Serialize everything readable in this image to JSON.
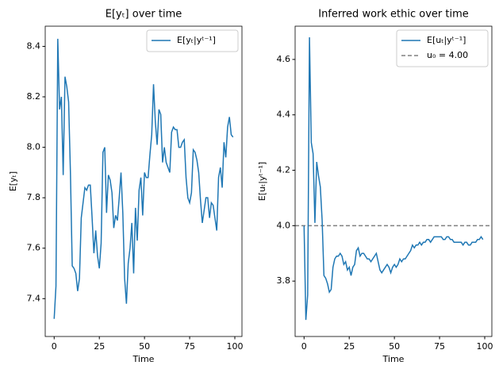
{
  "chart_data": [
    {
      "type": "line",
      "title": "E[yₜ] over time",
      "xlabel": "Time",
      "ylabel": "E[yₜ]",
      "x": [
        0,
        1,
        2,
        3,
        4,
        5,
        6,
        7,
        8,
        9,
        10,
        11,
        12,
        13,
        14,
        15,
        16,
        17,
        18,
        19,
        20,
        21,
        22,
        23,
        24,
        25,
        26,
        27,
        28,
        29,
        30,
        31,
        32,
        33,
        34,
        35,
        36,
        37,
        38,
        39,
        40,
        41,
        42,
        43,
        44,
        45,
        46,
        47,
        48,
        49,
        50,
        51,
        52,
        53,
        54,
        55,
        56,
        57,
        58,
        59,
        60,
        61,
        62,
        63,
        64,
        65,
        66,
        67,
        68,
        69,
        70,
        71,
        72,
        73,
        74,
        75,
        76,
        77,
        78,
        79,
        80,
        81,
        82,
        83,
        84,
        85,
        86,
        87,
        88,
        89,
        90,
        91,
        92,
        93,
        94,
        95,
        96,
        97,
        98,
        99
      ],
      "series": [
        {
          "name": "E[yₜ|yᵗ⁻¹]",
          "color": "#1f77b4",
          "values": [
            7.32,
            7.45,
            8.43,
            8.15,
            8.2,
            7.89,
            8.28,
            8.24,
            8.18,
            7.9,
            7.53,
            7.52,
            7.5,
            7.43,
            7.48,
            7.72,
            7.78,
            7.84,
            7.83,
            7.85,
            7.85,
            7.72,
            7.58,
            7.67,
            7.57,
            7.52,
            7.62,
            7.98,
            8.0,
            7.74,
            7.89,
            7.87,
            7.82,
            7.68,
            7.73,
            7.71,
            7.8,
            7.9,
            7.74,
            7.48,
            7.38,
            7.54,
            7.6,
            7.7,
            7.5,
            7.76,
            7.63,
            7.83,
            7.88,
            7.73,
            7.9,
            7.88,
            7.88,
            7.97,
            8.05,
            8.25,
            8.1,
            8.01,
            8.15,
            8.13,
            7.94,
            8.0,
            7.94,
            7.92,
            7.9,
            8.06,
            8.08,
            8.07,
            8.07,
            8.0,
            8.0,
            8.02,
            8.03,
            7.88,
            7.8,
            7.78,
            7.82,
            7.99,
            7.98,
            7.95,
            7.9,
            7.79,
            7.7,
            7.75,
            7.8,
            7.8,
            7.72,
            7.78,
            7.77,
            7.72,
            7.67,
            7.88,
            7.92,
            7.84,
            8.02,
            7.96,
            8.08,
            8.12,
            8.05,
            8.04
          ]
        }
      ],
      "xlim": [
        -4.95,
        103.95
      ],
      "ylim": [
        7.25,
        8.48
      ],
      "xticks": [
        0,
        25,
        50,
        75,
        100
      ],
      "yticks": [
        7.4,
        7.6,
        7.8,
        {
          "value": 8,
          "label": "8.0"
        },
        8.2,
        8.4
      ],
      "legend": "upper right"
    },
    {
      "type": "line",
      "title": "Inferred work ethic over time",
      "xlabel": "Time",
      "ylabel": "E[uₜ|yᵗ⁻¹]",
      "x": [
        0,
        1,
        2,
        3,
        4,
        5,
        6,
        7,
        8,
        9,
        10,
        11,
        12,
        13,
        14,
        15,
        16,
        17,
        18,
        19,
        20,
        21,
        22,
        23,
        24,
        25,
        26,
        27,
        28,
        29,
        30,
        31,
        32,
        33,
        34,
        35,
        36,
        37,
        38,
        39,
        40,
        41,
        42,
        43,
        44,
        45,
        46,
        47,
        48,
        49,
        50,
        51,
        52,
        53,
        54,
        55,
        56,
        57,
        58,
        59,
        60,
        61,
        62,
        63,
        64,
        65,
        66,
        67,
        68,
        69,
        70,
        71,
        72,
        73,
        74,
        75,
        76,
        77,
        78,
        79,
        80,
        81,
        82,
        83,
        84,
        85,
        86,
        87,
        88,
        89,
        90,
        91,
        92,
        93,
        94,
        95,
        96,
        97,
        98,
        99
      ],
      "series": [
        {
          "name": "E[uₜ|yᵗ⁻¹]",
          "color": "#1f77b4",
          "values": [
            4.0,
            3.66,
            3.75,
            4.68,
            4.3,
            4.26,
            4.01,
            4.23,
            4.18,
            4.14,
            4.02,
            3.82,
            3.81,
            3.79,
            3.76,
            3.77,
            3.85,
            3.88,
            3.89,
            3.89,
            3.9,
            3.89,
            3.86,
            3.87,
            3.84,
            3.85,
            3.82,
            3.85,
            3.86,
            3.91,
            3.92,
            3.89,
            3.9,
            3.9,
            3.89,
            3.88,
            3.88,
            3.87,
            3.88,
            3.89,
            3.9,
            3.87,
            3.84,
            3.83,
            3.84,
            3.85,
            3.86,
            3.85,
            3.83,
            3.85,
            3.86,
            3.85,
            3.86,
            3.88,
            3.87,
            3.88,
            3.88,
            3.89,
            3.9,
            3.91,
            3.93,
            3.92,
            3.93,
            3.93,
            3.94,
            3.93,
            3.94,
            3.94,
            3.95,
            3.95,
            3.94,
            3.95,
            3.96,
            3.96,
            3.96,
            3.96,
            3.96,
            3.95,
            3.95,
            3.96,
            3.96,
            3.95,
            3.95,
            3.94,
            3.94,
            3.94,
            3.94,
            3.94,
            3.93,
            3.94,
            3.94,
            3.93,
            3.93,
            3.94,
            3.94,
            3.94,
            3.95,
            3.95,
            3.96,
            3.95
          ]
        }
      ],
      "hlines": [
        {
          "name": "u₀ = 4.00",
          "value": 4,
          "color": "#808080",
          "dashed": true
        }
      ],
      "xlim": [
        -4.95,
        103.95
      ],
      "ylim": [
        3.6,
        4.72
      ],
      "xticks": [
        0,
        25,
        50,
        75,
        100
      ],
      "yticks": [
        3.8,
        {
          "value": 4,
          "label": "4.0"
        },
        4.2,
        4.4,
        4.6
      ],
      "legend": "upper right"
    }
  ]
}
